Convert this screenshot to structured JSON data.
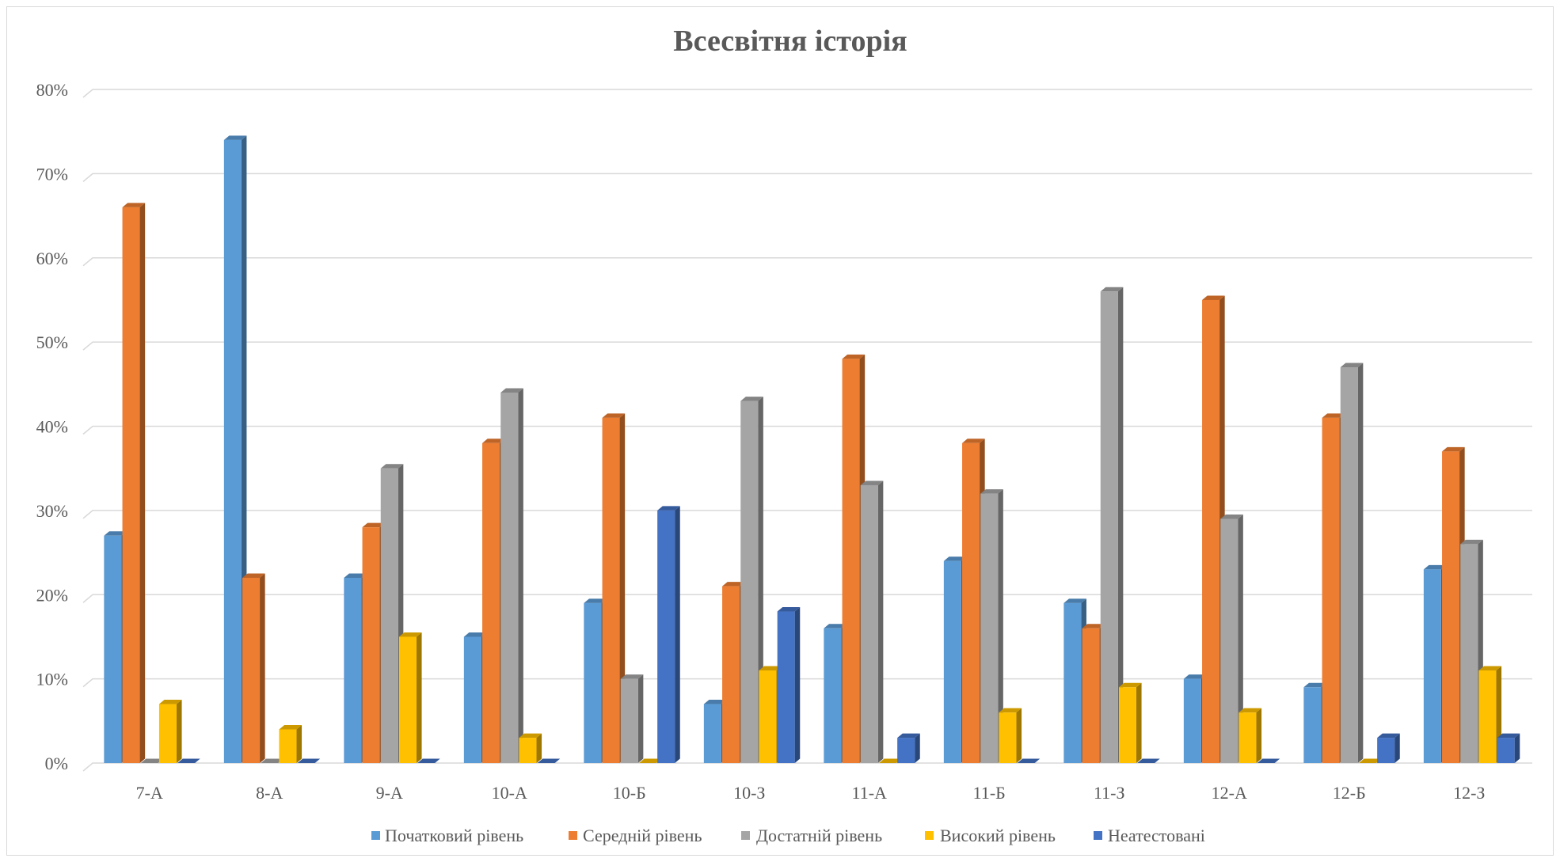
{
  "chart_data": {
    "type": "bar",
    "title": "Всесвітня історія",
    "xlabel": "",
    "ylabel": "",
    "ylim": [
      0,
      0.8
    ],
    "y_ticks": [
      "0%",
      "10%",
      "20%",
      "30%",
      "40%",
      "50%",
      "60%",
      "70%",
      "80%"
    ],
    "y_tick_values": [
      0,
      0.1,
      0.2,
      0.3,
      0.4,
      0.5,
      0.6,
      0.7,
      0.8
    ],
    "grid": true,
    "legend_position": "bottom",
    "categories": [
      "7-А",
      "8-А",
      "9-А",
      "10-А",
      "10-Б",
      "10-З",
      "11-А",
      "11-Б",
      "11-З",
      "12-А",
      "12-Б",
      "12-З"
    ],
    "series": [
      {
        "name": "Початковий рівень",
        "color": "#5b9bd5",
        "values": [
          0.27,
          0.74,
          0.22,
          0.15,
          0.19,
          0.07,
          0.16,
          0.24,
          0.19,
          0.1,
          0.09,
          0.23
        ]
      },
      {
        "name": "Середній рівень",
        "color": "#ed7d31",
        "values": [
          0.66,
          0.22,
          0.28,
          0.38,
          0.41,
          0.21,
          0.48,
          0.38,
          0.16,
          0.55,
          0.41,
          0.37
        ]
      },
      {
        "name": "Достатній рівень",
        "color": "#a5a5a5",
        "values": [
          0,
          0,
          0.35,
          0.44,
          0.1,
          0.43,
          0.33,
          0.32,
          0.56,
          0.29,
          0.47,
          0.26
        ]
      },
      {
        "name": "Високий рівень",
        "color": "#ffc000",
        "values": [
          0.07,
          0.04,
          0.15,
          0.03,
          0,
          0.11,
          0,
          0.06,
          0.09,
          0.06,
          0,
          0.11
        ]
      },
      {
        "name": "Неатестовані",
        "color": "#4472c4",
        "values": [
          0,
          0,
          0,
          0,
          0.3,
          0.18,
          0.03,
          0,
          0,
          0,
          0.03,
          0.03
        ]
      }
    ]
  }
}
